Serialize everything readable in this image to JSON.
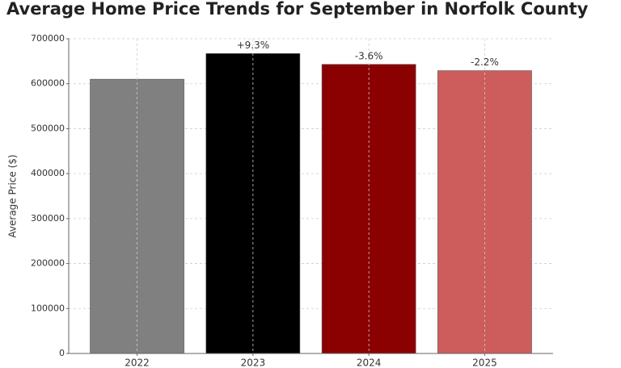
{
  "chart_data": {
    "type": "bar",
    "title": "Average Home Price Trends for September in Norfolk County",
    "y_label": "Average Price ($)",
    "categories": [
      "2022",
      "2023",
      "2024",
      "2025"
    ],
    "values": [
      610000,
      667000,
      643000,
      629000
    ],
    "colors": [
      "#808080",
      "#000000",
      "#8b0000",
      "#cd5c5c"
    ],
    "annotations": [
      null,
      "+9.3%",
      "-3.6%",
      "-2.2%"
    ],
    "ylim": [
      0,
      700000
    ],
    "yticks": [
      0,
      100000,
      200000,
      300000,
      400000,
      500000,
      600000,
      700000
    ],
    "grid": true
  }
}
